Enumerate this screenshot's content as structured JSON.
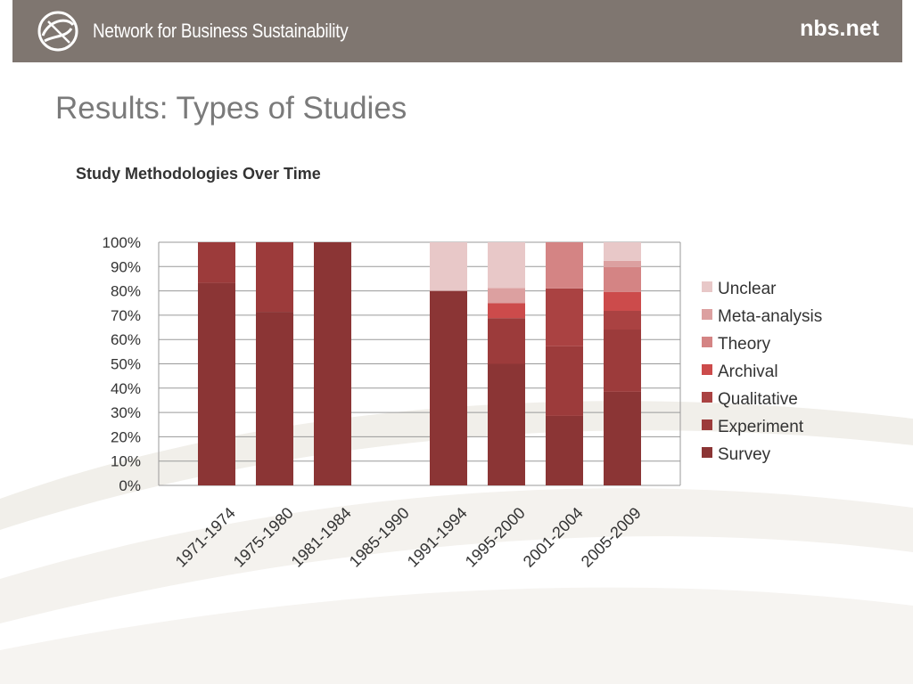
{
  "header": {
    "brand_name": "Network for Business Sustainability",
    "site": "nbs.net",
    "colors": {
      "bar": "#7f7670",
      "text": "#ffffff"
    }
  },
  "page": {
    "title": "Results: Types of Studies"
  },
  "chart_data": {
    "type": "bar",
    "stacked": true,
    "title": "Study Methodologies Over Time",
    "xlabel": "",
    "ylabel": "",
    "ylim": [
      0,
      100
    ],
    "y_ticks": [
      "0%",
      "10%",
      "20%",
      "30%",
      "40%",
      "50%",
      "60%",
      "70%",
      "80%",
      "90%",
      "100%"
    ],
    "categories": [
      "1971-1974",
      "1975-1980",
      "1981-1984",
      "1985-1990",
      "1991-1994",
      "1995-2000",
      "2001-2004",
      "2005-2009"
    ],
    "series": [
      {
        "name": "Survey",
        "color": "#8b3535",
        "values": [
          83.3,
          71.4,
          100,
          0,
          80,
          50,
          28.6,
          38.5
        ]
      },
      {
        "name": "Experiment",
        "color": "#9c3b3b",
        "values": [
          16.7,
          28.6,
          0,
          0,
          0,
          18.8,
          28.6,
          25.6
        ]
      },
      {
        "name": "Qualitative",
        "color": "#aa4242",
        "values": [
          0,
          0,
          0,
          0,
          0,
          0,
          23.8,
          7.7
        ]
      },
      {
        "name": "Archival",
        "color": "#cc4b4b",
        "values": [
          0,
          0,
          0,
          0,
          0,
          6.2,
          0,
          7.7
        ]
      },
      {
        "name": "Theory",
        "color": "#d48484",
        "values": [
          0,
          0,
          0,
          0,
          0,
          0,
          19,
          10.3
        ]
      },
      {
        "name": "Meta-analysis",
        "color": "#dca0a0",
        "values": [
          0,
          0,
          0,
          0,
          0,
          6.2,
          0,
          2.6
        ]
      },
      {
        "name": "Unclear",
        "color": "#e8c8c8",
        "values": [
          0,
          0,
          0,
          0,
          20,
          18.8,
          0,
          7.6
        ]
      }
    ],
    "legend_position": "right",
    "grid": true
  }
}
